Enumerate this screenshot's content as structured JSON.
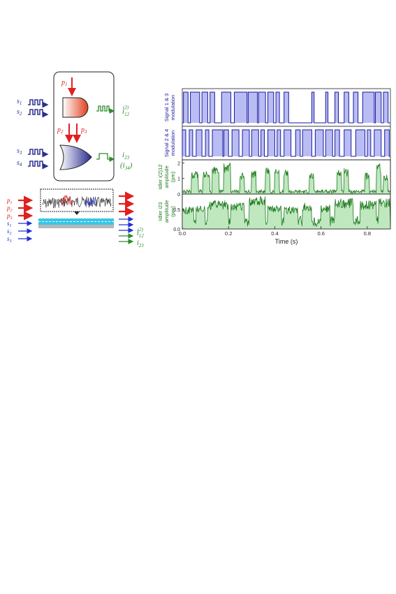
{
  "diagram": {
    "pumps_top": [
      "p",
      "1"
    ],
    "pumps_mid": [
      [
        "p",
        "2"
      ],
      [
        "p",
        "3"
      ]
    ],
    "signals_and": [
      [
        "s",
        "1"
      ],
      [
        "s",
        "2"
      ]
    ],
    "signals_or": [
      [
        "s",
        "3"
      ],
      [
        "s",
        "4"
      ]
    ],
    "out_and": {
      "base": "i",
      "sub": "12",
      "sup": "(2)"
    },
    "out_or": {
      "base": "i",
      "sub": "23"
    },
    "out_or_alt": {
      "base": "(i",
      "sub": "34",
      "tail": ")"
    },
    "left_inputs": [
      {
        "base": "p",
        "sub": "1",
        "color": "#e02020"
      },
      {
        "base": "p",
        "sub": "2",
        "color": "#e02020"
      },
      {
        "base": "p",
        "sub": "3",
        "color": "#e02020"
      },
      {
        "base": "s",
        "sub": "1",
        "color": "#2030d0"
      },
      {
        "base": "s",
        "sub": "2",
        "color": "#2030d0"
      },
      {
        "base": "s",
        "sub": "3",
        "color": "#2030d0"
      }
    ],
    "right_outputs": [
      {
        "base": "i",
        "sub": "12",
        "sup": "(2)"
      },
      {
        "base": "i",
        "sub": "23"
      }
    ]
  },
  "colors": {
    "pump": "#e02020",
    "signal": "#2b2f8f",
    "idler": "#2e8b2e",
    "waveguide": "#38c6e6",
    "bar_fill": "#b9bdf3",
    "bar_line": "#1a1aa0",
    "idler_fill": "#bfe8bf",
    "idler_line": "#1e7a1e"
  },
  "chart_data": {
    "type": "area",
    "xlabel": "Time (s)",
    "xlim": [
      0,
      0.9
    ],
    "xticks": [
      "0.0",
      "0.2",
      "0.4",
      "0.6",
      "0.8"
    ],
    "xtick_values": [
      0.0,
      0.2,
      0.4,
      0.6,
      0.8
    ],
    "panels": [
      {
        "ylabel": [
          "Signal 1 & 3",
          "modulation"
        ],
        "kind": "binary",
        "on_intervals": [
          [
            0.005,
            0.025
          ],
          [
            0.035,
            0.075
          ],
          [
            0.085,
            0.11
          ],
          [
            0.12,
            0.14
          ],
          [
            0.17,
            0.21
          ],
          [
            0.225,
            0.28
          ],
          [
            0.285,
            0.325
          ],
          [
            0.33,
            0.36
          ],
          [
            0.37,
            0.395
          ],
          [
            0.405,
            0.42
          ],
          [
            0.44,
            0.46
          ],
          [
            0.56,
            0.57
          ],
          [
            0.62,
            0.63
          ],
          [
            0.66,
            0.675
          ],
          [
            0.7,
            0.72
          ],
          [
            0.74,
            0.76
          ],
          [
            0.78,
            0.83
          ],
          [
            0.835,
            0.86
          ],
          [
            0.87,
            0.89
          ]
        ],
        "yticks": []
      },
      {
        "ylabel": [
          "Signal 2 & 4",
          "modulation"
        ],
        "kind": "binary",
        "on_intervals": [
          [
            0.0,
            0.015
          ],
          [
            0.03,
            0.045
          ],
          [
            0.06,
            0.085
          ],
          [
            0.1,
            0.115
          ],
          [
            0.13,
            0.175
          ],
          [
            0.18,
            0.2
          ],
          [
            0.215,
            0.245
          ],
          [
            0.26,
            0.29
          ],
          [
            0.3,
            0.33
          ],
          [
            0.34,
            0.355
          ],
          [
            0.37,
            0.4
          ],
          [
            0.41,
            0.425
          ],
          [
            0.44,
            0.47
          ],
          [
            0.49,
            0.51
          ],
          [
            0.52,
            0.56
          ],
          [
            0.575,
            0.61
          ],
          [
            0.62,
            0.65
          ],
          [
            0.66,
            0.68
          ],
          [
            0.7,
            0.73
          ],
          [
            0.75,
            0.79
          ],
          [
            0.8,
            0.815
          ],
          [
            0.83,
            0.86
          ],
          [
            0.875,
            0.895
          ]
        ],
        "yticks": []
      },
      {
        "ylabel": [
          "Idler i(2)12",
          "amplitude",
          "(pm)"
        ],
        "kind": "analog",
        "ylim": [
          0,
          2.2
        ],
        "yticks": [
          0,
          1,
          2
        ],
        "pulses": [
          [
            0.04,
            0.07,
            1.4
          ],
          [
            0.09,
            0.12,
            1.5
          ],
          [
            0.13,
            0.16,
            1.7
          ],
          [
            0.18,
            0.21,
            1.9
          ],
          [
            0.25,
            0.27,
            1.3
          ],
          [
            0.3,
            0.32,
            1.5
          ],
          [
            0.36,
            0.38,
            1.7
          ],
          [
            0.4,
            0.42,
            1.6
          ],
          [
            0.44,
            0.46,
            1.5
          ],
          [
            0.55,
            0.57,
            1.3
          ],
          [
            0.67,
            0.69,
            1.5
          ],
          [
            0.7,
            0.72,
            1.6
          ],
          [
            0.79,
            0.81,
            1.3
          ],
          [
            0.84,
            0.86,
            1.9
          ],
          [
            0.87,
            0.89,
            1.2
          ]
        ],
        "baseline": 0.25
      },
      {
        "ylabel": [
          "Idler i23",
          "amplitude",
          "(pm)"
        ],
        "kind": "analog",
        "ylim": [
          0,
          0.9
        ],
        "yticks": [
          0.0,
          0.5
        ],
        "pulses": [
          [
            0.0,
            0.05,
            0.55
          ],
          [
            0.06,
            0.1,
            0.6
          ],
          [
            0.11,
            0.2,
            0.7
          ],
          [
            0.21,
            0.27,
            0.65
          ],
          [
            0.29,
            0.36,
            0.8
          ],
          [
            0.37,
            0.43,
            0.6
          ],
          [
            0.44,
            0.5,
            0.55
          ],
          [
            0.52,
            0.56,
            0.65
          ],
          [
            0.6,
            0.64,
            0.6
          ],
          [
            0.66,
            0.74,
            0.75
          ],
          [
            0.77,
            0.84,
            0.7
          ],
          [
            0.85,
            0.9,
            0.75
          ]
        ],
        "baseline": 0.3
      }
    ]
  }
}
